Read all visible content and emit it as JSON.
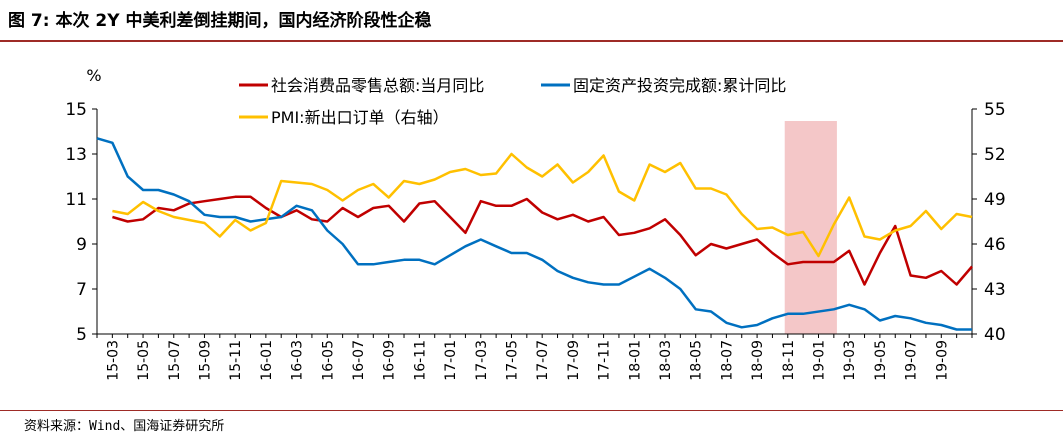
{
  "header": {
    "title": "图 7:  本次 2Y 中美利差倒挂期间，国内经济阶段性企稳"
  },
  "footer": {
    "source": "资料来源：Wind、国海证券研究所"
  },
  "chart_data": {
    "type": "line",
    "y_unit_label": "%",
    "grid": false,
    "legend_position": "top",
    "y_left": {
      "min": 5,
      "max": 15,
      "ticks": [
        5,
        7,
        9,
        11,
        13,
        15
      ]
    },
    "y_right": {
      "min": 40,
      "max": 55,
      "ticks": [
        40,
        43,
        46,
        49,
        52,
        55
      ]
    },
    "x_tick_labels": [
      "15-03",
      "15-05",
      "15-07",
      "15-09",
      "15-11",
      "16-01",
      "16-03",
      "16-05",
      "16-07",
      "16-09",
      "16-11",
      "17-01",
      "17-03",
      "17-05",
      "17-07",
      "17-09",
      "17-11",
      "18-01",
      "18-03",
      "18-05",
      "18-07",
      "18-09",
      "18-11",
      "19-01",
      "19-03",
      "19-05",
      "19-07",
      "19-09"
    ],
    "shaded_region": {
      "from": "2018-11",
      "to": "2019-02"
    },
    "series": [
      {
        "name": "社会消费品零售总额:当月同比",
        "color": "#c00000",
        "axis": "left",
        "start": "2015-03",
        "values": [
          10.2,
          10.0,
          10.1,
          10.6,
          10.5,
          10.8,
          10.9,
          11.0,
          11.1,
          11.1,
          10.6,
          10.2,
          10.5,
          10.1,
          10.0,
          10.6,
          10.2,
          10.6,
          10.7,
          10.0,
          10.8,
          10.9,
          10.2,
          9.5,
          10.9,
          10.7,
          10.7,
          11.0,
          10.4,
          10.1,
          10.3,
          10.0,
          10.2,
          9.4,
          9.5,
          9.7,
          10.1,
          9.4,
          8.5,
          9.0,
          8.8,
          9.0,
          9.2,
          8.6,
          8.1,
          8.2,
          8.2,
          8.2,
          8.7,
          7.2,
          8.6,
          9.8,
          7.6,
          7.5,
          7.8,
          7.2,
          8.0
        ]
      },
      {
        "name": "固定资产投资完成额:累计同比",
        "color": "#0070c0",
        "axis": "left",
        "start": "2015-02",
        "values": [
          13.7,
          13.5,
          12.0,
          11.4,
          11.4,
          11.2,
          10.9,
          10.3,
          10.2,
          10.2,
          10.0,
          null,
          10.2,
          10.7,
          10.5,
          9.6,
          9.0,
          8.1,
          8.1,
          8.2,
          8.3,
          8.3,
          8.1,
          null,
          8.9,
          9.2,
          8.9,
          8.6,
          8.6,
          8.3,
          7.8,
          7.5,
          7.3,
          7.2,
          7.2,
          null,
          7.9,
          7.5,
          7.0,
          6.1,
          6.0,
          5.5,
          5.3,
          5.4,
          5.7,
          5.9,
          5.9,
          null,
          6.1,
          6.3,
          6.1,
          5.6,
          5.8,
          5.7,
          5.5,
          5.4,
          5.2,
          5.2
        ]
      },
      {
        "name": "PMI:新出口订单（右轴）",
        "color": "#ffc000",
        "axis": "right",
        "start": "2015-03",
        "values": [
          48.2,
          48.0,
          48.8,
          48.2,
          47.8,
          47.6,
          47.4,
          46.5,
          47.6,
          46.9,
          47.4,
          50.2,
          50.1,
          50.0,
          49.6,
          48.9,
          49.6,
          50.0,
          49.1,
          50.2,
          50.0,
          50.3,
          50.8,
          51.0,
          50.6,
          50.7,
          52.0,
          51.1,
          50.5,
          51.3,
          50.1,
          50.8,
          51.9,
          49.5,
          48.9,
          51.3,
          50.8,
          51.4,
          49.7,
          49.7,
          49.3,
          48.0,
          47.0,
          47.1,
          46.6,
          46.8,
          45.2,
          47.3,
          49.1,
          46.5,
          46.3,
          46.9,
          47.2,
          48.2,
          47.0,
          48.0,
          47.8
        ]
      }
    ]
  }
}
